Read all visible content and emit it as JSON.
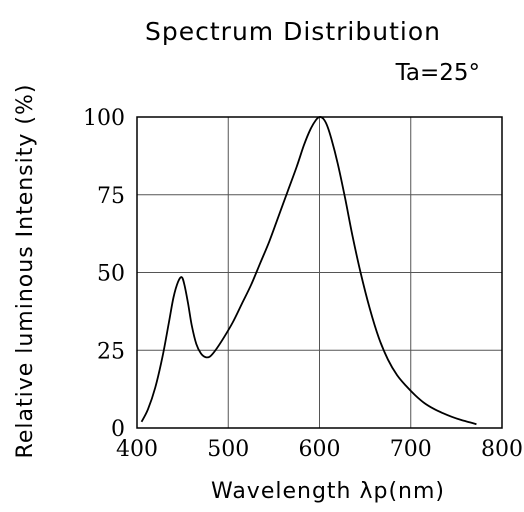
{
  "chart_data": {
    "type": "line",
    "title": "Spectrum Distribution",
    "annotation": "Ta=25°",
    "xlabel": "Wavelength λp(nm)",
    "ylabel": "Relative luminous Intensity (%)",
    "xlim": [
      400,
      800
    ],
    "ylim": [
      0,
      100
    ],
    "xticks": [
      400,
      500,
      600,
      700,
      800
    ],
    "yticks": [
      0,
      25,
      50,
      75,
      100
    ],
    "grid": true,
    "series": [
      {
        "x": [
          405,
          412,
          420,
          428,
          435,
          440,
          445,
          449,
          452,
          456,
          460,
          465,
          470,
          475,
          480,
          486,
          495,
          505,
          515,
          525,
          535,
          545,
          555,
          565,
          575,
          583,
          590,
          596,
          600,
          604,
          608,
          613,
          620,
          628,
          636,
          645,
          655,
          665,
          675,
          685,
          695,
          705,
          715,
          725,
          735,
          745,
          755,
          765,
          772
        ],
        "y": [
          2,
          6,
          13,
          23,
          34,
          42,
          47,
          48.5,
          46,
          40,
          33,
          27,
          24,
          22.8,
          23,
          25,
          29,
          34,
          40,
          46,
          53,
          60,
          68,
          76,
          84,
          91,
          96,
          99,
          100,
          99.5,
          97.5,
          93,
          85,
          74,
          62,
          50,
          38.5,
          29,
          22,
          17,
          13.5,
          10.5,
          8,
          6.2,
          4.8,
          3.6,
          2.6,
          1.8,
          1.2
        ]
      }
    ]
  }
}
